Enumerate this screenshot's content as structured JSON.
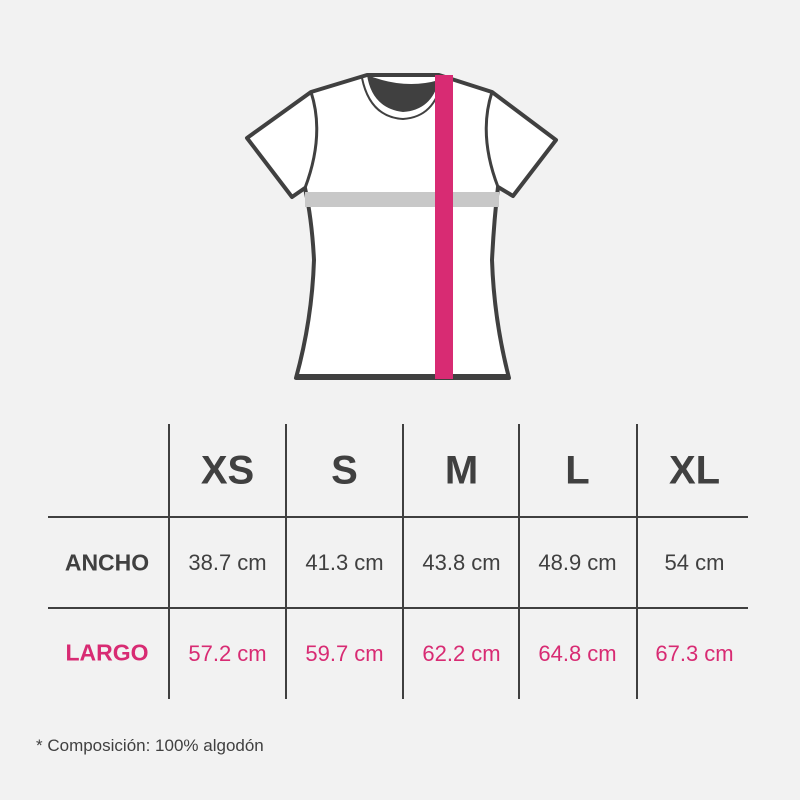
{
  "colors": {
    "outline": "#404040",
    "accent": "#d82b73",
    "width_bar": "#c8c8c8"
  },
  "table": {
    "sizes": [
      "XS",
      "S",
      "M",
      "L",
      "XL"
    ],
    "rows": [
      {
        "label": "ANCHO",
        "values": [
          "38.7 cm",
          "41.3 cm",
          "43.8 cm",
          "48.9 cm",
          "54 cm"
        ]
      },
      {
        "label": "LARGO",
        "values": [
          "57.2 cm",
          "59.7 cm",
          "62.2 cm",
          "64.8 cm",
          "67.3 cm"
        ]
      }
    ]
  },
  "footnote": "* Composición: 100% algodón"
}
